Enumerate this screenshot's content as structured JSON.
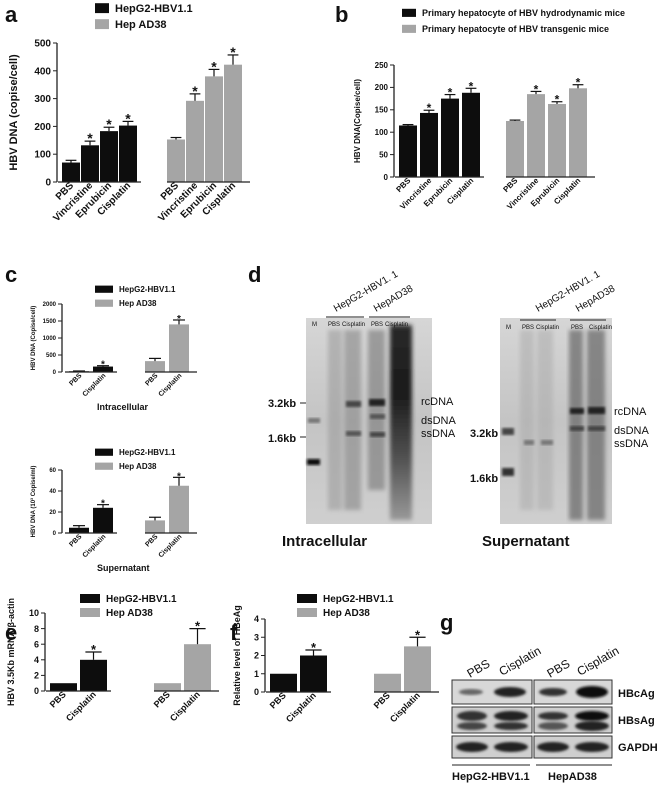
{
  "panels": {
    "a": "a",
    "b": "b",
    "c": "c",
    "d": "d",
    "e": "e",
    "f": "f",
    "g": "g"
  },
  "colors": {
    "black": "#0d0d0d",
    "gray": "#a5a5a5"
  },
  "chart_data": [
    {
      "id": "a",
      "type": "bar",
      "ylabel": "HBV DNA (copise/cell)",
      "ylim": [
        0,
        500
      ],
      "yticks": [
        0,
        100,
        200,
        300,
        400,
        500
      ],
      "legend": [
        "HepG2-HBV1.1",
        "Hep AD38"
      ],
      "groups": [
        {
          "name": "HepG2-HBV1.1",
          "color": "black",
          "categories": [
            "PBS",
            "Vincristine",
            "Eprubicin",
            "Cisplatin"
          ],
          "values": [
            70,
            132,
            183,
            203
          ],
          "errors": [
            8,
            15,
            14,
            15
          ],
          "stars": [
            "",
            "*",
            "*",
            "*"
          ]
        },
        {
          "name": "Hep AD38",
          "color": "gray",
          "categories": [
            "PBS",
            "Vincristine",
            "Eprubicin",
            "Cisplatin"
          ],
          "values": [
            153,
            292,
            380,
            422
          ],
          "errors": [
            7,
            25,
            25,
            35
          ],
          "stars": [
            "",
            "*",
            "*",
            "*"
          ]
        }
      ]
    },
    {
      "id": "b",
      "type": "bar",
      "ylabel": "HBV DNA(Copise/cell)",
      "ylim": [
        0,
        250
      ],
      "yticks": [
        0,
        50,
        100,
        150,
        200,
        250
      ],
      "legend": [
        "Primary hepatocyte of HBV hydrodynamic mice",
        "Primary hepatocyte of HBV transgenic mice"
      ],
      "groups": [
        {
          "name": "hydrodynamic",
          "color": "black",
          "categories": [
            "PBS",
            "Vincristine",
            "Eprubicin",
            "Cisplatin"
          ],
          "values": [
            115,
            143,
            175,
            188
          ],
          "errors": [
            2,
            6,
            9,
            10
          ],
          "stars": [
            "",
            "*",
            "*",
            "*"
          ]
        },
        {
          "name": "transgenic",
          "color": "gray",
          "categories": [
            "PBS",
            "Vincristine",
            "Eprubicin",
            "Cisplatin"
          ],
          "values": [
            125,
            185,
            163,
            198
          ],
          "errors": [
            2,
            6,
            5,
            8
          ],
          "stars": [
            "",
            "*",
            "*",
            "*"
          ]
        }
      ]
    },
    {
      "id": "c1",
      "type": "bar",
      "ylabel": "HBV DNA (Copise/cell)",
      "ylim": [
        0,
        2000
      ],
      "yticks": [
        0,
        500,
        1000,
        1500,
        2000
      ],
      "legend": [
        "HepG2-HBV1.1",
        "Hep AD38"
      ],
      "xtitle": "Intracellular",
      "groups": [
        {
          "name": "HepG2-HBV1.1",
          "color": "black",
          "categories": [
            "PBS",
            "Cisplatin"
          ],
          "values": [
            22,
            160
          ],
          "errors": [
            8,
            25
          ],
          "stars": [
            "",
            "*"
          ]
        },
        {
          "name": "Hep AD38",
          "color": "gray",
          "categories": [
            "PBS",
            "Cisplatin"
          ],
          "values": [
            320,
            1400
          ],
          "errors": [
            80,
            130
          ],
          "stars": [
            "",
            "*"
          ]
        }
      ]
    },
    {
      "id": "c2",
      "type": "bar",
      "ylabel": "HBV DNA (10³ Copise/ml)",
      "ylim": [
        0,
        60
      ],
      "yticks": [
        0,
        20,
        40,
        60
      ],
      "legend": [
        "HepG2-HBV1.1",
        "Hep AD38"
      ],
      "xtitle": "Supernatant",
      "groups": [
        {
          "name": "HepG2-HBV1.1",
          "color": "black",
          "categories": [
            "PBS",
            "Cisplatin"
          ],
          "values": [
            5,
            24
          ],
          "errors": [
            2,
            3
          ],
          "stars": [
            "",
            "*"
          ]
        },
        {
          "name": "Hep AD38",
          "color": "gray",
          "categories": [
            "PBS",
            "Cisplatin"
          ],
          "values": [
            12,
            45
          ],
          "errors": [
            3,
            8
          ],
          "stars": [
            "",
            "*"
          ]
        }
      ]
    },
    {
      "id": "e",
      "type": "bar",
      "ylabel": "HBV 3.5Kb mRNA/β-actin",
      "ylim": [
        0,
        10
      ],
      "yticks": [
        0,
        2,
        4,
        6,
        8,
        10
      ],
      "legend": [
        "HepG2-HBV1.1",
        "Hep AD38"
      ],
      "groups": [
        {
          "name": "HepG2-HBV1.1",
          "color": "black",
          "categories": [
            "PBS",
            "Cisplatin"
          ],
          "values": [
            1,
            4
          ],
          "errors": [
            0,
            1
          ],
          "stars": [
            "",
            "*"
          ]
        },
        {
          "name": "Hep AD38",
          "color": "gray",
          "categories": [
            "PBS",
            "Cisplatin"
          ],
          "values": [
            1,
            6
          ],
          "errors": [
            0,
            2
          ],
          "stars": [
            "",
            "*"
          ]
        }
      ]
    },
    {
      "id": "f",
      "type": "bar",
      "ylabel": "Relative level of HBeAg",
      "ylim": [
        0,
        4
      ],
      "yticks": [
        0,
        1,
        2,
        3,
        4
      ],
      "legend": [
        "HepG2-HBV1.1",
        "Hep AD38"
      ],
      "groups": [
        {
          "name": "HepG2-HBV1.1",
          "color": "black",
          "categories": [
            "PBS",
            "Cisplatin"
          ],
          "values": [
            1,
            2
          ],
          "errors": [
            0,
            0.3
          ],
          "stars": [
            "",
            "*"
          ]
        },
        {
          "name": "Hep AD38",
          "color": "gray",
          "categories": [
            "PBS",
            "Cisplatin"
          ],
          "values": [
            1,
            2.5
          ],
          "errors": [
            0,
            0.5
          ],
          "stars": [
            "",
            "*"
          ]
        }
      ]
    }
  ],
  "gel_d": {
    "left": {
      "title": "Intracellular",
      "marker": "M",
      "lanes": [
        "PBS",
        "Cisplatin",
        "PBS",
        "Cisplatin"
      ],
      "groups": [
        "HepG2-HBV1. 1",
        "HepAD38"
      ],
      "size_labels": [
        "3.2kb",
        "1.6kb"
      ],
      "band_labels": [
        "rcDNA",
        "dsDNA",
        "ssDNA"
      ]
    },
    "right": {
      "title": "Supernatant",
      "marker": "M",
      "lanes": [
        "PBS",
        "Cisplatin",
        "PBS",
        "Cisplatin"
      ],
      "groups": [
        "HepG2-HBV1. 1",
        "HepAD38"
      ],
      "size_labels": [
        "3.2kb",
        "1.6kb"
      ],
      "band_labels": [
        "rcDNA",
        "dsDNA",
        "ssDNA"
      ]
    }
  },
  "blot_g": {
    "lanes": [
      "PBS",
      "Cisplatin",
      "PBS",
      "Cisplatin"
    ],
    "rows": [
      "HBcAg",
      "HBsAg",
      "GAPDH"
    ],
    "groups": [
      "HepG2-HBV1.1",
      "HepAD38"
    ]
  }
}
